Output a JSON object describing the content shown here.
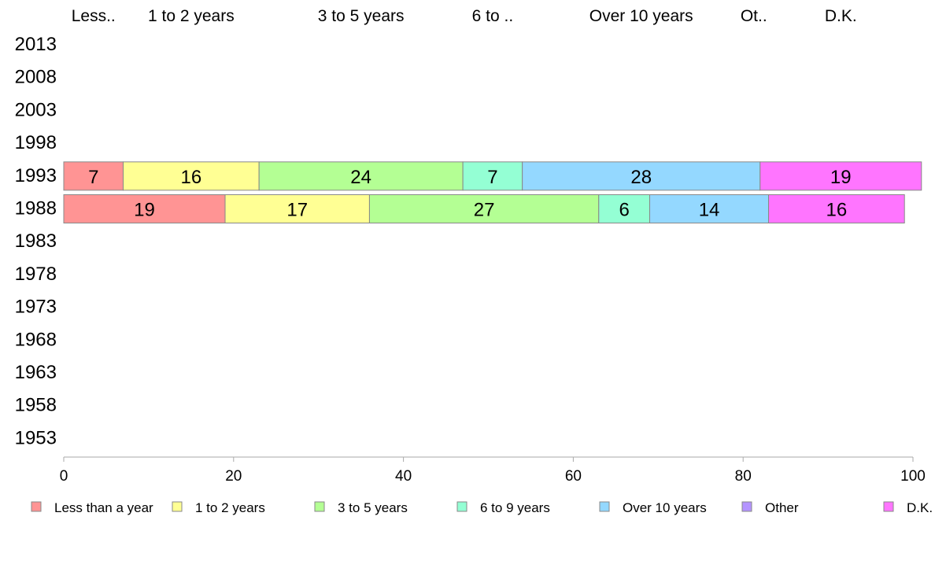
{
  "chart_data": {
    "type": "bar",
    "orientation": "horizontal",
    "stacked": true,
    "categories": [
      "2013",
      "2008",
      "2003",
      "1998",
      "1993",
      "1988",
      "1983",
      "1978",
      "1973",
      "1968",
      "1963",
      "1958",
      "1953"
    ],
    "series": [
      {
        "name": "Less than a year",
        "short_label": "Less..",
        "color": "#FF9494",
        "values": [
          null,
          null,
          null,
          null,
          7,
          19,
          null,
          null,
          null,
          null,
          null,
          null,
          null
        ]
      },
      {
        "name": "1 to 2 years",
        "short_label": "1 to 2 years",
        "color": "#FFFF94",
        "values": [
          null,
          null,
          null,
          null,
          16,
          17,
          null,
          null,
          null,
          null,
          null,
          null,
          null
        ]
      },
      {
        "name": "3 to 5 years",
        "short_label": "3 to 5 years",
        "color": "#B4FF94",
        "values": [
          null,
          null,
          null,
          null,
          24,
          27,
          null,
          null,
          null,
          null,
          null,
          null,
          null
        ]
      },
      {
        "name": "6 to 9 years",
        "short_label": "6 to ..",
        "color": "#94FFD4",
        "values": [
          null,
          null,
          null,
          null,
          7,
          6,
          null,
          null,
          null,
          null,
          null,
          null,
          null
        ]
      },
      {
        "name": "Over 10 years",
        "short_label": "Over 10 years",
        "color": "#94D8FF",
        "values": [
          null,
          null,
          null,
          null,
          28,
          14,
          null,
          null,
          null,
          null,
          null,
          null,
          null
        ]
      },
      {
        "name": "Other",
        "short_label": "Ot..",
        "color": "#B494FF",
        "values": [
          null,
          null,
          null,
          null,
          0,
          0,
          null,
          null,
          null,
          null,
          null,
          null,
          null
        ]
      },
      {
        "name": "D.K.",
        "short_label": "D.K.",
        "color": "#FF75FF",
        "values": [
          null,
          null,
          null,
          null,
          19,
          16,
          null,
          null,
          null,
          null,
          null,
          null,
          null
        ]
      }
    ],
    "xlim": [
      0,
      100
    ],
    "xticks": [
      0,
      20,
      40,
      60,
      80,
      100
    ],
    "grid": false,
    "legend_position": "bottom"
  }
}
